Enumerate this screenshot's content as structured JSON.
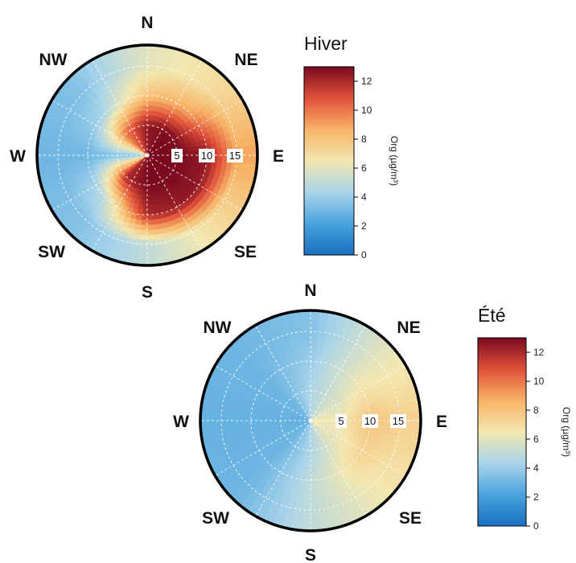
{
  "chart_data": [
    {
      "type": "heatmap",
      "subtype": "polar-bivariate",
      "title": "Hiver",
      "directions": [
        "N",
        "NE",
        "E",
        "SE",
        "S",
        "SW",
        "W",
        "NW"
      ],
      "radial_ticks": [
        5,
        10,
        15
      ],
      "colorbar": {
        "label": "Org (µg/m³)",
        "ticks": [
          0,
          2,
          4,
          6,
          8,
          10,
          12
        ],
        "range": [
          0,
          13
        ],
        "colors": [
          "#1a6fbf",
          "#4aa3dd",
          "#a9d4ea",
          "#f3e7b0",
          "#f7b366",
          "#e0503a",
          "#7b0a1f"
        ]
      },
      "sector_values": [
        {
          "direction": "N",
          "r_5": 12.5,
          "r_10": 8.0,
          "r_15": 6.0
        },
        {
          "direction": "NE",
          "r_5": 13.0,
          "r_10": 9.0,
          "r_15": 7.0
        },
        {
          "direction": "E",
          "r_5": 13.0,
          "r_10": 12.5,
          "r_15": 9.0
        },
        {
          "direction": "SE",
          "r_5": 13.0,
          "r_10": 12.5,
          "r_15": 7.0
        },
        {
          "direction": "S",
          "r_5": 13.0,
          "r_10": 12.0,
          "r_15": 5.0
        },
        {
          "direction": "SW",
          "r_5": 12.0,
          "r_10": 5.0,
          "r_15": 3.5
        },
        {
          "direction": "W",
          "r_5": 3.5,
          "r_10": 3.0,
          "r_15": 3.0
        },
        {
          "direction": "NW",
          "r_5": 10.0,
          "r_10": 4.5,
          "r_15": 3.5
        }
      ]
    },
    {
      "type": "heatmap",
      "subtype": "polar-bivariate",
      "title": "Été",
      "directions": [
        "N",
        "NE",
        "E",
        "SE",
        "S",
        "SW",
        "W",
        "NW"
      ],
      "radial_ticks": [
        5,
        10,
        15
      ],
      "colorbar": {
        "label": "Org (µg/m³)",
        "ticks": [
          0,
          2,
          4,
          6,
          8,
          10,
          12
        ],
        "range": [
          0,
          13
        ],
        "colors": [
          "#1a6fbf",
          "#4aa3dd",
          "#a9d4ea",
          "#f3e7b0",
          "#f7b366",
          "#e0503a",
          "#7b0a1f"
        ]
      },
      "sector_values": [
        {
          "direction": "N",
          "r_5": 4.5,
          "r_10": 4.0,
          "r_15": 3.5
        },
        {
          "direction": "NE",
          "r_5": 5.5,
          "r_10": 6.0,
          "r_15": 6.0
        },
        {
          "direction": "E",
          "r_5": 6.5,
          "r_10": 8.0,
          "r_15": 7.5
        },
        {
          "direction": "SE",
          "r_5": 6.0,
          "r_10": 7.0,
          "r_15": 6.5
        },
        {
          "direction": "S",
          "r_5": 4.5,
          "r_10": 5.0,
          "r_15": 5.0
        },
        {
          "direction": "SW",
          "r_5": 3.0,
          "r_10": 3.0,
          "r_15": 3.0
        },
        {
          "direction": "W",
          "r_5": 2.8,
          "r_10": 2.8,
          "r_15": 2.8
        },
        {
          "direction": "NW",
          "r_5": 3.0,
          "r_10": 3.0,
          "r_15": 3.0
        }
      ]
    }
  ]
}
